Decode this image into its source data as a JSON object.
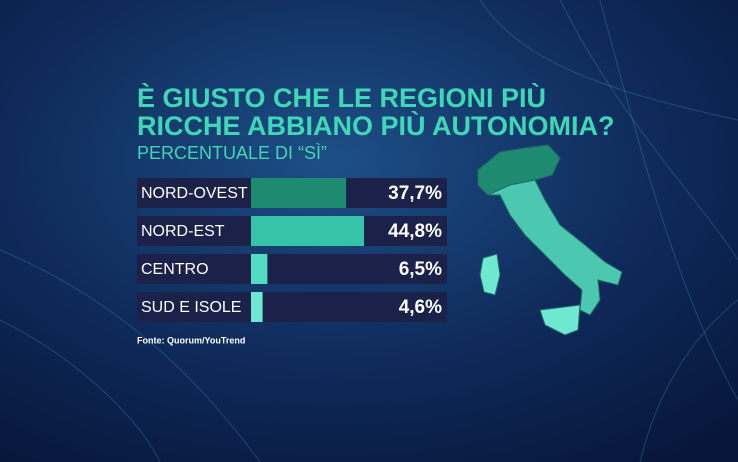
{
  "chart_data": {
    "type": "bar",
    "orientation": "horizontal",
    "title": [
      "È GIUSTO CHE LE REGIONI PIÙ",
      "RICCHE ABBIANO PIÙ AUTONOMIA?"
    ],
    "subtitle": "PERCENTUALE DI “SÌ”",
    "categories": [
      "NORD-OVEST",
      "NORD-EST",
      "CENTRO",
      "SUD E ISOLE"
    ],
    "values": [
      37.7,
      44.8,
      6.5,
      4.6
    ],
    "value_labels": [
      "37,7%",
      "44,8%",
      "6,5%",
      "4,6%"
    ],
    "colors": [
      "#1e8a70",
      "#35c4a8",
      "#52dcc3",
      "#6fe8d2"
    ],
    "source": "Fonte: Quorum/YouTrend"
  }
}
